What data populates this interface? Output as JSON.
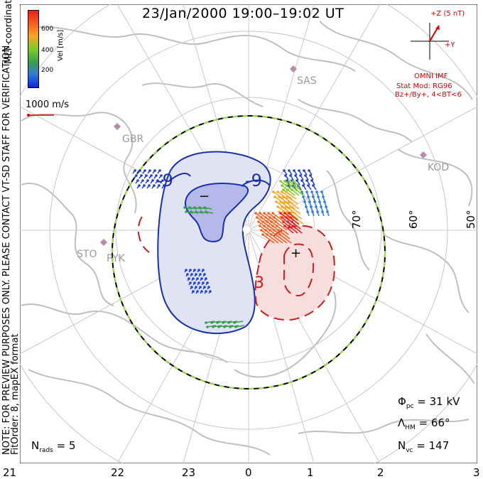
{
  "title": "23/Jan/2000 19:00–19:02 UT",
  "side_notes": {
    "coords": "MLT coordinates",
    "preview": "NOTE: FOR PREVIEW PURPOSES ONLY. PLEASE CONTACT VT-SD STAFF FOR VERIFICATION.",
    "fit": "FitOrder: 8, mapEX format"
  },
  "colorbar": {
    "label": "Vel [m/s]",
    "ticks": [
      "600",
      "400",
      "200"
    ],
    "colors": [
      "#e81e1e",
      "#f36020",
      "#f5a623",
      "#7ecb2a",
      "#3aa04a",
      "#2f7bd6",
      "#1020e0"
    ]
  },
  "velocity_scale": {
    "label": "1000 m/s",
    "color": "#d40000"
  },
  "imf": {
    "z_label": "+Z (5 nT)",
    "y_label": "+Y",
    "source": "OMNI IMF",
    "stat_mod": "Stat Mod: RG96",
    "condition": "Bz+/By+, 4<BT<6",
    "color": "#d40000"
  },
  "mlt_labels": [
    "21",
    "22",
    "23",
    "0",
    "1",
    "2",
    "3"
  ],
  "lat_labels": [
    "70°",
    "60°",
    "50°"
  ],
  "stations": [
    "SAS",
    "GBR",
    "KOD",
    "STO",
    "PYK"
  ],
  "contours": {
    "negative_label": "-9",
    "positive_label": "3",
    "min_marker": "−",
    "max_marker": "+",
    "negative_color": "#1a2fb0",
    "positive_color": "#c81e1e",
    "negative_fill": "#dfe3f3",
    "positive_fill": "#f6dede"
  },
  "stats": {
    "phi_pc": {
      "symbol": "Φ",
      "sub": "pc",
      "value": "= 31 kV"
    },
    "lambda_hm": {
      "symbol": "Λ",
      "sub": "HM",
      "value": "= 66°"
    },
    "n_vc": {
      "symbol": "N",
      "sub": "vc",
      "value": "= 147"
    },
    "n_rads": {
      "symbol": "N",
      "sub": "rads",
      "value": "= 5"
    }
  }
}
